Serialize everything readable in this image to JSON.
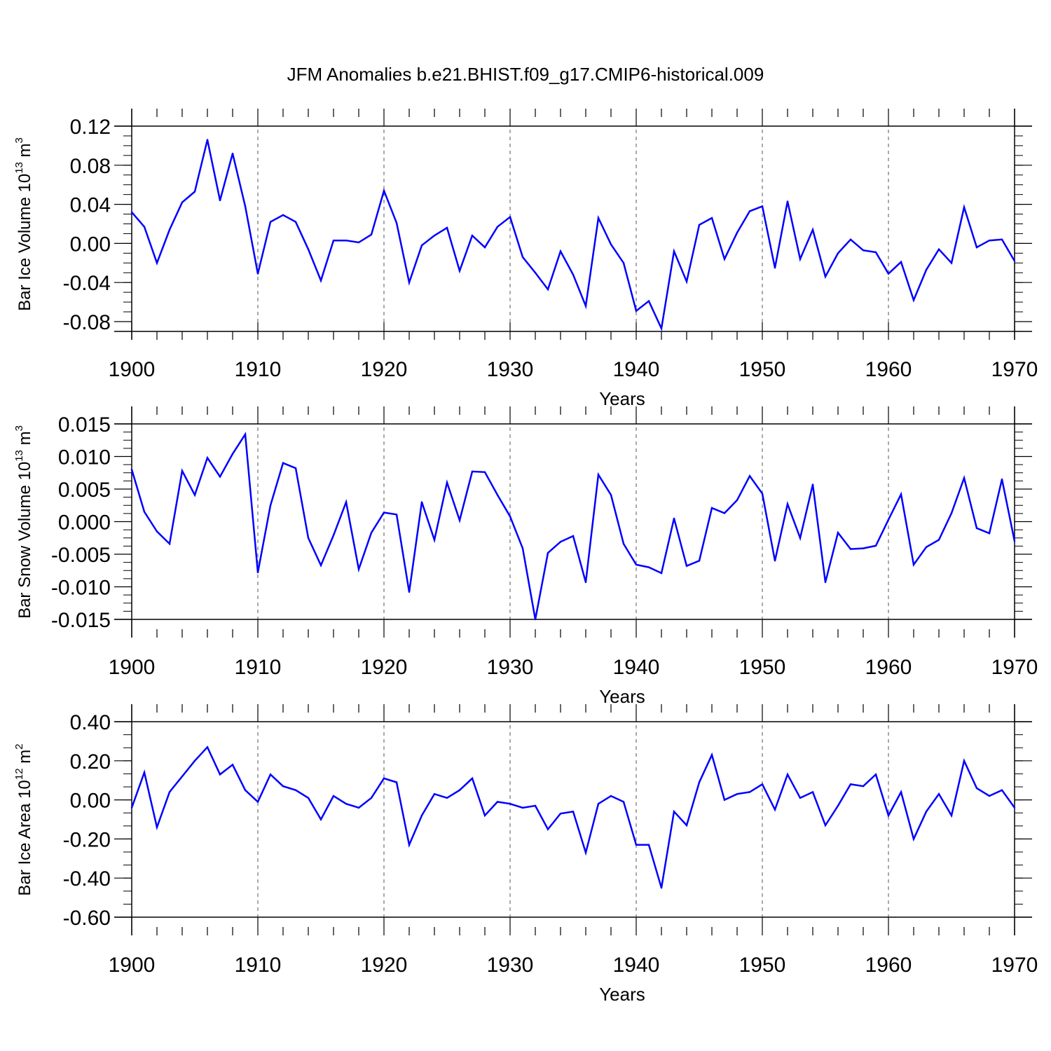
{
  "title": "JFM Anomalies b.e21.BHIST.f09_g17.CMIP6-historical.009",
  "line_color": "#0000ff",
  "chart_data": [
    {
      "type": "line",
      "xlabel": "Years",
      "ylabel": "Bar Ice Volume 10",
      "ylabel_exp": "13",
      "ylabel_unit": " m",
      "ylabel_unit_exp": "3",
      "xlim": [
        1900,
        1970
      ],
      "ylim": [
        -0.09,
        0.12
      ],
      "x_ticks": [
        "1900",
        "1910",
        "1920",
        "1930",
        "1940",
        "1950",
        "1960",
        "1970"
      ],
      "y_ticks": [
        "-0.08",
        "-0.04",
        "0.00",
        "0.04",
        "0.08",
        "0.12"
      ],
      "y_tick_values": [
        -0.08,
        -0.04,
        0.0,
        0.04,
        0.08,
        0.12
      ],
      "grid": "vertical dashed at major x ticks",
      "x": [
        1900,
        1901,
        1902,
        1903,
        1904,
        1905,
        1906,
        1907,
        1908,
        1909,
        1910,
        1911,
        1912,
        1913,
        1914,
        1915,
        1916,
        1917,
        1918,
        1919,
        1920,
        1921,
        1922,
        1923,
        1924,
        1925,
        1926,
        1927,
        1928,
        1929,
        1930,
        1931,
        1932,
        1933,
        1934,
        1935,
        1936,
        1937,
        1938,
        1939,
        1940,
        1941,
        1942,
        1943,
        1944,
        1945,
        1946,
        1947,
        1948,
        1949,
        1950,
        1951,
        1952,
        1953,
        1954,
        1955,
        1956,
        1957,
        1958,
        1959,
        1960,
        1961,
        1962,
        1963,
        1964,
        1965,
        1966,
        1967,
        1968,
        1969,
        1970
      ],
      "values": [
        0.032,
        0.017,
        -0.02,
        0.014,
        0.042,
        0.053,
        0.106,
        0.044,
        0.092,
        0.038,
        -0.031,
        0.022,
        0.029,
        0.022,
        -0.006,
        -0.038,
        0.003,
        0.003,
        0.001,
        0.009,
        0.054,
        0.021,
        -0.04,
        -0.002,
        0.008,
        0.016,
        -0.028,
        0.008,
        -0.004,
        0.017,
        0.027,
        -0.014,
        -0.03,
        -0.047,
        -0.008,
        -0.032,
        -0.064,
        0.026,
        -0.001,
        -0.02,
        -0.069,
        -0.059,
        -0.087,
        -0.008,
        -0.039,
        0.019,
        0.026,
        -0.016,
        0.011,
        0.033,
        0.038,
        -0.025,
        0.043,
        -0.016,
        0.014,
        -0.034,
        -0.01,
        0.004,
        -0.007,
        -0.009,
        -0.031,
        -0.019,
        -0.058,
        -0.027,
        -0.006,
        -0.02,
        0.037,
        -0.004,
        0.003,
        0.004,
        -0.018
      ]
    },
    {
      "type": "line",
      "xlabel": "Years",
      "ylabel": "Bar Snow Volume 10",
      "ylabel_exp": "13",
      "ylabel_unit": " m",
      "ylabel_unit_exp": "3",
      "xlim": [
        1900,
        1970
      ],
      "ylim": [
        -0.015,
        0.015
      ],
      "x_ticks": [
        "1900",
        "1910",
        "1920",
        "1930",
        "1940",
        "1950",
        "1960",
        "1970"
      ],
      "y_ticks": [
        "-0.015",
        "-0.010",
        "-0.005",
        "0.000",
        "0.005",
        "0.010",
        "0.015"
      ],
      "y_tick_values": [
        -0.015,
        -0.01,
        -0.005,
        0.0,
        0.005,
        0.01,
        0.015
      ],
      "grid": "vertical dashed at major x ticks",
      "x": [
        1900,
        1901,
        1902,
        1903,
        1904,
        1905,
        1906,
        1907,
        1908,
        1909,
        1910,
        1911,
        1912,
        1913,
        1914,
        1915,
        1916,
        1917,
        1918,
        1919,
        1920,
        1921,
        1922,
        1923,
        1924,
        1925,
        1926,
        1927,
        1928,
        1929,
        1930,
        1931,
        1932,
        1933,
        1934,
        1935,
        1936,
        1937,
        1938,
        1939,
        1940,
        1941,
        1942,
        1943,
        1944,
        1945,
        1946,
        1947,
        1948,
        1949,
        1950,
        1951,
        1952,
        1953,
        1954,
        1955,
        1956,
        1957,
        1958,
        1959,
        1960,
        1961,
        1962,
        1963,
        1964,
        1965,
        1966,
        1967,
        1968,
        1969,
        1970
      ],
      "values": [
        0.008,
        0.0015,
        -0.0015,
        -0.0034,
        0.0078,
        0.0041,
        0.0098,
        0.0069,
        0.0104,
        0.0134,
        -0.0078,
        0.0025,
        0.009,
        0.0082,
        -0.0025,
        -0.0067,
        -0.0021,
        0.003,
        -0.0073,
        -0.0017,
        0.0014,
        0.0011,
        -0.0108,
        0.003,
        -0.0028,
        0.006,
        0.0002,
        0.0077,
        0.0076,
        0.0041,
        0.0008,
        -0.0041,
        -0.015,
        -0.0048,
        -0.0031,
        -0.0022,
        -0.0093,
        0.0072,
        0.0041,
        -0.0034,
        -0.0066,
        -0.007,
        -0.0079,
        0.0005,
        -0.0068,
        -0.006,
        0.0021,
        0.0013,
        0.0033,
        0.007,
        0.0043,
        -0.006,
        0.0027,
        -0.0025,
        0.0057,
        -0.0093,
        -0.0017,
        -0.0042,
        -0.0041,
        -0.0037,
        0.0003,
        0.0042,
        -0.0066,
        -0.0039,
        -0.0028,
        0.0013,
        0.0067,
        -0.001,
        -0.0018,
        0.0065,
        -0.003
      ]
    },
    {
      "type": "line",
      "xlabel": "Years",
      "ylabel": "Bar Ice Area 10",
      "ylabel_exp": "12",
      "ylabel_unit": " m",
      "ylabel_unit_exp": "2",
      "xlim": [
        1900,
        1970
      ],
      "ylim": [
        -0.6,
        0.4
      ],
      "x_ticks": [
        "1900",
        "1910",
        "1920",
        "1930",
        "1940",
        "1950",
        "1960",
        "1970"
      ],
      "y_ticks": [
        "-0.60",
        "-0.40",
        "-0.20",
        "0.00",
        "0.20",
        "0.40"
      ],
      "y_tick_values": [
        -0.6,
        -0.4,
        -0.2,
        0.0,
        0.2,
        0.4
      ],
      "grid": "vertical dashed at major x ticks",
      "x": [
        1900,
        1901,
        1902,
        1903,
        1904,
        1905,
        1906,
        1907,
        1908,
        1909,
        1910,
        1911,
        1912,
        1913,
        1914,
        1915,
        1916,
        1917,
        1918,
        1919,
        1920,
        1921,
        1922,
        1923,
        1924,
        1925,
        1926,
        1927,
        1928,
        1929,
        1930,
        1931,
        1932,
        1933,
        1934,
        1935,
        1936,
        1937,
        1938,
        1939,
        1940,
        1941,
        1942,
        1943,
        1944,
        1945,
        1946,
        1947,
        1948,
        1949,
        1950,
        1951,
        1952,
        1953,
        1954,
        1955,
        1956,
        1957,
        1958,
        1959,
        1960,
        1961,
        1962,
        1963,
        1964,
        1965,
        1966,
        1967,
        1968,
        1969,
        1970
      ],
      "values": [
        -0.04,
        0.14,
        -0.14,
        0.04,
        0.12,
        0.2,
        0.27,
        0.13,
        0.18,
        0.05,
        -0.01,
        0.13,
        0.07,
        0.05,
        0.01,
        -0.1,
        0.02,
        -0.02,
        -0.04,
        0.01,
        0.11,
        0.09,
        -0.23,
        -0.08,
        0.03,
        0.01,
        0.05,
        0.11,
        -0.08,
        -0.01,
        -0.02,
        -0.04,
        -0.03,
        -0.15,
        -0.07,
        -0.06,
        -0.27,
        -0.02,
        0.02,
        -0.01,
        -0.23,
        -0.23,
        -0.45,
        -0.06,
        -0.13,
        0.09,
        0.23,
        0.0,
        0.03,
        0.04,
        0.08,
        -0.05,
        0.13,
        0.01,
        0.04,
        -0.13,
        -0.03,
        0.08,
        0.07,
        0.13,
        -0.08,
        0.04,
        -0.2,
        -0.06,
        0.03,
        -0.08,
        0.2,
        0.06,
        0.02,
        0.05,
        -0.04
      ]
    }
  ]
}
